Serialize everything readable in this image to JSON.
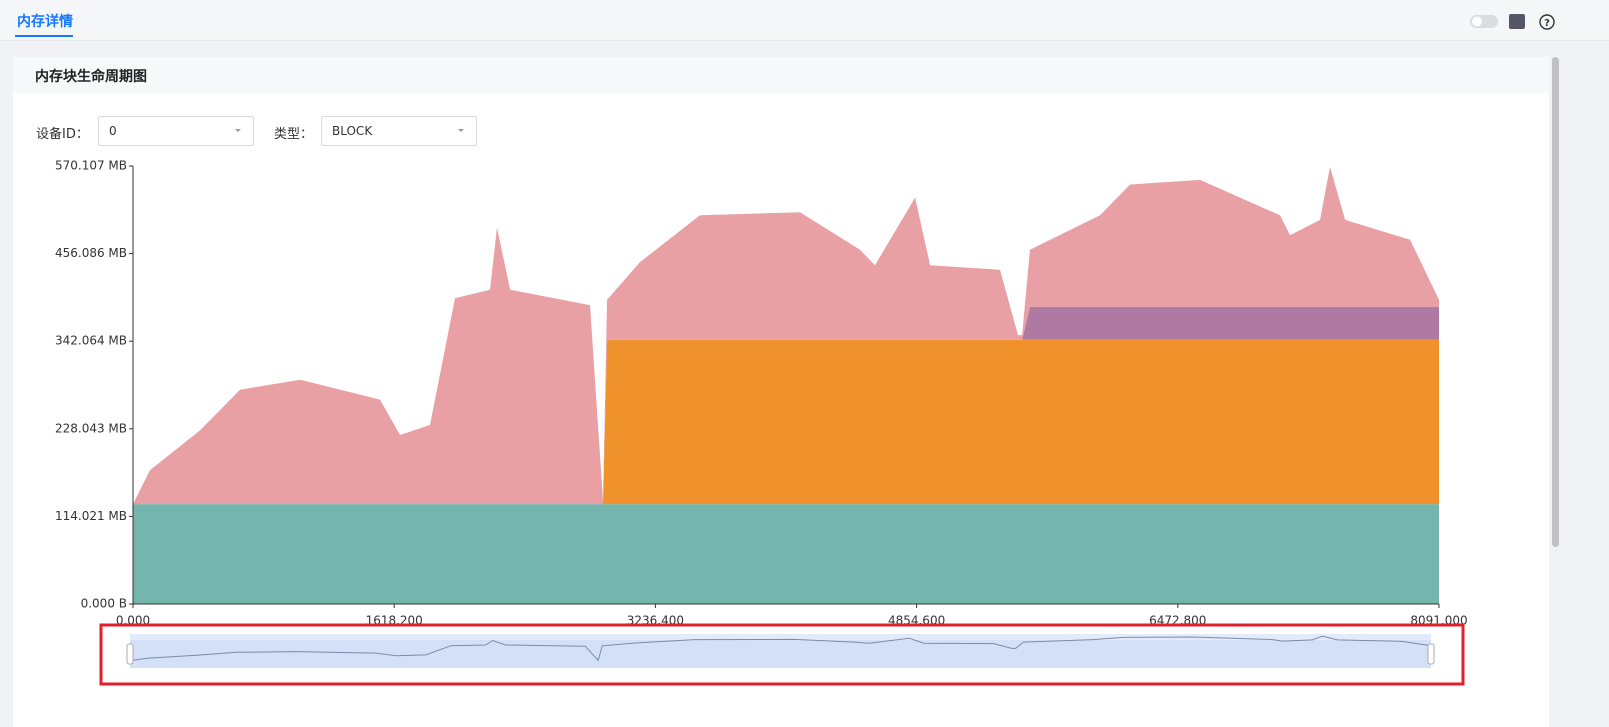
{
  "tab": "内存详情",
  "panel_title": "内存块生命周期图",
  "filters": {
    "device_label": "设备ID：",
    "device_value": "0",
    "type_label": "类型：",
    "type_value": "BLOCK"
  },
  "chart_data": {
    "type": "stacked-area",
    "x": [
      0,
      105,
      415,
      663,
      1035,
      1530,
      1654,
      1840,
      1995,
      2212,
      2255,
      2336,
      2831,
      2912,
      2937,
      3141,
      3513,
      4132,
      4504,
      4597,
      4845,
      4938,
      5371,
      5483,
      5508,
      5557,
      5991,
      6177,
      6611,
      7106,
      7168,
      7354,
      7416,
      7509,
      7912,
      8091
    ],
    "series": [
      {
        "color": "#74b5ad",
        "values": [
          130,
          130,
          130,
          130,
          130,
          130,
          130,
          130,
          130,
          130,
          130,
          130,
          130,
          130,
          130,
          130,
          130,
          130,
          130,
          130,
          130,
          130,
          130,
          130,
          130,
          130,
          130,
          130,
          130,
          130,
          130,
          130,
          130,
          130,
          130,
          130
        ]
      },
      {
        "color": "#f0922b",
        "values": [
          0,
          0,
          0,
          0,
          0,
          0,
          0,
          0,
          0,
          0,
          0,
          0,
          0,
          0,
          214,
          214,
          214,
          214,
          214,
          214,
          214,
          214,
          214,
          214,
          214,
          214,
          214,
          214,
          214,
          214,
          214,
          214,
          214,
          214,
          214,
          214
        ]
      },
      {
        "color": "#ae7aa2",
        "values": [
          0,
          0,
          0,
          0,
          0,
          0,
          0,
          0,
          0,
          0,
          0,
          0,
          0,
          0,
          0,
          0,
          0,
          0,
          0,
          0,
          0,
          0,
          0,
          0,
          0,
          43,
          43,
          43,
          43,
          43,
          43,
          43,
          43,
          43,
          43,
          43
        ]
      },
      {
        "color": "#e8a0a4",
        "values": [
          0,
          44,
          96,
          149,
          162,
          136,
          90,
          103,
          268,
          279,
          360,
          279,
          259,
          5,
          52,
          101,
          162,
          166,
          117,
          97,
          185,
          97,
          91,
          6,
          6,
          74,
          119,
          159,
          165,
          119,
          93,
          113,
          182,
          113,
          87,
          9
        ]
      }
    ],
    "xlim": [
      0,
      8091
    ],
    "xticks": [
      {
        "value": 0,
        "label": "0.000"
      },
      {
        "value": 1618.2,
        "label": "1618.200"
      },
      {
        "value": 3236.4,
        "label": "3236.400"
      },
      {
        "value": 4854.6,
        "label": "4854.600"
      },
      {
        "value": 6472.8,
        "label": "6472.800"
      },
      {
        "value": 8091,
        "label": "8091.000"
      }
    ],
    "ylim": [
      0,
      570.107
    ],
    "yticks": [
      {
        "value": 0,
        "label": "0.000 B"
      },
      {
        "value": 114.021,
        "label": "114.021 MB"
      },
      {
        "value": 228.043,
        "label": "228.043 MB"
      },
      {
        "value": 342.064,
        "label": "342.064 MB"
      },
      {
        "value": 456.086,
        "label": "456.086 MB"
      },
      {
        "value": 570.107,
        "label": "570.107 MB"
      }
    ]
  }
}
